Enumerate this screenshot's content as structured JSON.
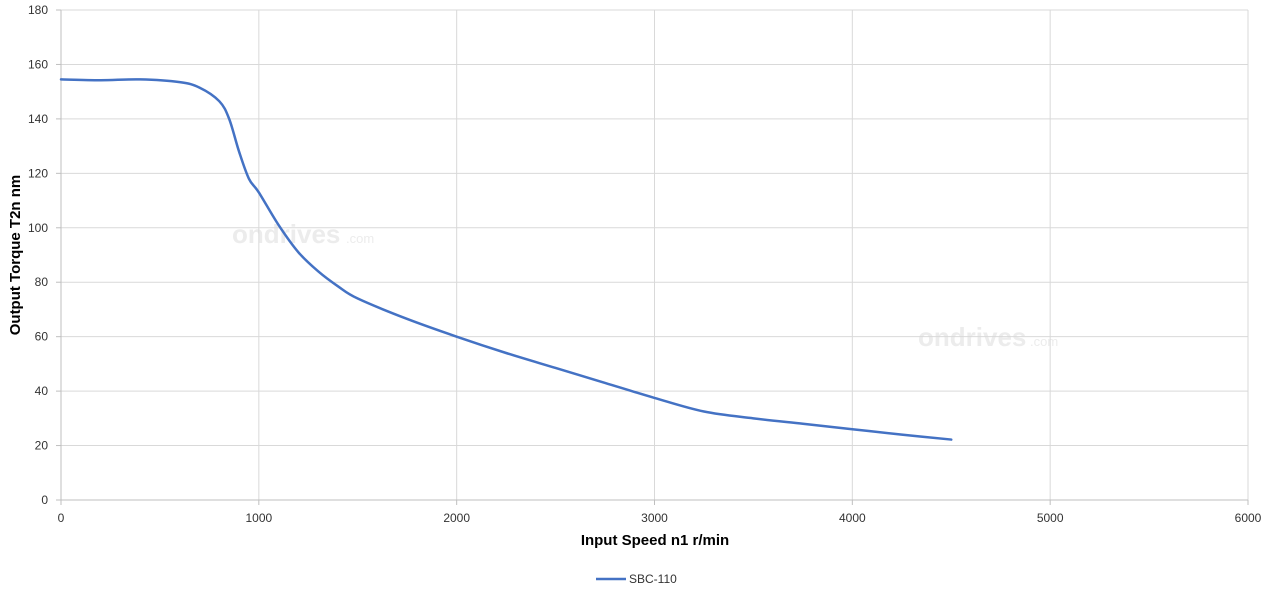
{
  "chart_data": {
    "type": "line",
    "title": "",
    "xlabel": "Input Speed n1 r/min",
    "ylabel": "Output Torque T2n nm",
    "xlim": [
      0,
      6000
    ],
    "ylim": [
      0,
      180
    ],
    "xticks": [
      0,
      1000,
      2000,
      3000,
      4000,
      5000,
      6000
    ],
    "yticks": [
      0,
      20,
      40,
      60,
      80,
      100,
      120,
      140,
      160,
      180
    ],
    "grid": true,
    "legend_position": "bottom-center",
    "series": [
      {
        "name": "SBC-110",
        "color": "#4472c4",
        "x": [
          0,
          200,
          400,
          600,
          700,
          800,
          850,
          900,
          950,
          1000,
          1100,
          1200,
          1300,
          1400,
          1500,
          1750,
          2000,
          2250,
          2500,
          2750,
          3000,
          3250,
          3500,
          3750,
          4000,
          4250,
          4500
        ],
        "y": [
          154.5,
          154.2,
          154.5,
          153.5,
          151.5,
          146.5,
          140,
          128,
          118,
          113,
          101,
          91,
          84,
          78.5,
          74,
          66.5,
          60,
          54,
          48.5,
          43,
          37.5,
          32.5,
          30,
          28,
          26,
          24,
          22.2
        ]
      }
    ]
  },
  "watermarks": [
    "ondrives",
    ".com"
  ]
}
